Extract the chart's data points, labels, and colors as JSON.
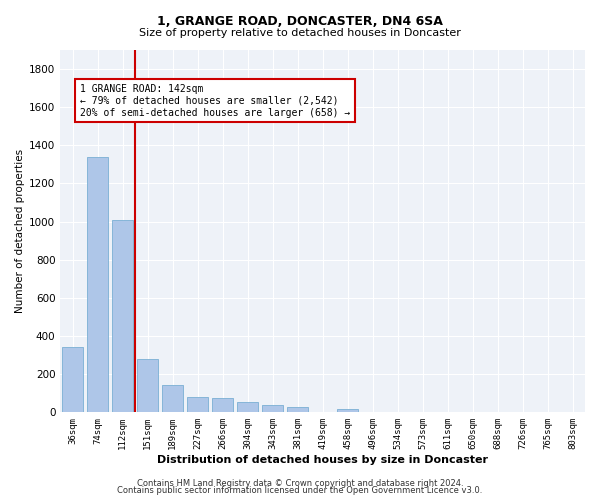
{
  "title": "1, GRANGE ROAD, DONCASTER, DN4 6SA",
  "subtitle": "Size of property relative to detached houses in Doncaster",
  "xlabel": "Distribution of detached houses by size in Doncaster",
  "ylabel": "Number of detached properties",
  "categories": [
    "36sqm",
    "74sqm",
    "112sqm",
    "151sqm",
    "189sqm",
    "227sqm",
    "266sqm",
    "304sqm",
    "343sqm",
    "381sqm",
    "419sqm",
    "458sqm",
    "496sqm",
    "534sqm",
    "573sqm",
    "611sqm",
    "650sqm",
    "688sqm",
    "726sqm",
    "765sqm",
    "803sqm"
  ],
  "values": [
    340,
    1340,
    1010,
    280,
    145,
    80,
    75,
    55,
    40,
    28,
    0,
    18,
    0,
    0,
    0,
    0,
    0,
    0,
    0,
    0,
    0
  ],
  "bar_color": "#aec6e8",
  "bar_edge_color": "#7aafd4",
  "vline_color": "#cc0000",
  "annotation_text": "1 GRANGE ROAD: 142sqm\n← 79% of detached houses are smaller (2,542)\n20% of semi-detached houses are larger (658) →",
  "annotation_box_color": "#cc0000",
  "annotation_bg": "white",
  "ylim": [
    0,
    1900
  ],
  "yticks": [
    0,
    200,
    400,
    600,
    800,
    1000,
    1200,
    1400,
    1600,
    1800
  ],
  "bg_color": "#eef2f8",
  "footer1": "Contains HM Land Registry data © Crown copyright and database right 2024.",
  "footer2": "Contains public sector information licensed under the Open Government Licence v3.0."
}
